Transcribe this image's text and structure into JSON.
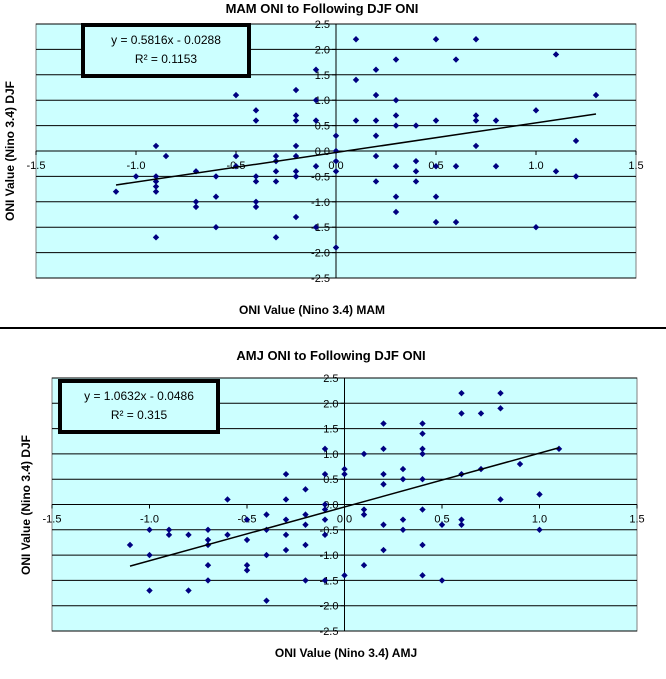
{
  "colors": {
    "plot_bg": "#CCFFFF",
    "gridline": "#000000",
    "marker": "#000080",
    "trendline": "#000000"
  },
  "chart_data": [
    {
      "type": "scatter",
      "title": "MAM ONI to Following DJF ONI",
      "xlabel": "ONI Value (Nino 3.4) MAM",
      "ylabel": "ONI Value (Nino 3.4) DJF",
      "xlim": [
        -1.5,
        1.5
      ],
      "ylim": [
        -2.5,
        2.5
      ],
      "xticks": [
        "-1.5",
        "-1.0",
        "-0.5",
        "0.0",
        "0.5",
        "1.0",
        "1.5"
      ],
      "yticks": [
        "-2.5",
        "-2.0",
        "-1.5",
        "-1.0",
        "-0.5",
        "0.0",
        "0.5",
        "1.0",
        "1.5",
        "2.0",
        "2.5"
      ],
      "grid": "horizontal",
      "equation": "y = 0.5816x - 0.0288",
      "r2": "R² = 0.1153",
      "trendline": {
        "slope": 0.5816,
        "intercept": -0.0288,
        "x_range": [
          -1.1,
          1.3
        ]
      },
      "points": [
        [
          -1.1,
          -0.8
        ],
        [
          -1.0,
          -0.5
        ],
        [
          -0.9,
          0.1
        ],
        [
          -0.9,
          -0.5
        ],
        [
          -0.9,
          -0.6
        ],
        [
          -0.9,
          -0.7
        ],
        [
          -0.9,
          -0.8
        ],
        [
          -0.9,
          -1.7
        ],
        [
          -0.85,
          -0.1
        ],
        [
          -0.7,
          -0.4
        ],
        [
          -0.7,
          -1.0
        ],
        [
          -0.7,
          -1.1
        ],
        [
          -0.6,
          -0.5
        ],
        [
          -0.6,
          -0.9
        ],
        [
          -0.6,
          -1.5
        ],
        [
          -0.5,
          1.1
        ],
        [
          -0.5,
          -0.1
        ],
        [
          -0.5,
          -0.3
        ],
        [
          -0.4,
          0.8
        ],
        [
          -0.4,
          0.6
        ],
        [
          -0.4,
          -0.5
        ],
        [
          -0.4,
          -0.6
        ],
        [
          -0.4,
          -1.0
        ],
        [
          -0.4,
          -1.1
        ],
        [
          -0.3,
          -0.1
        ],
        [
          -0.3,
          -0.2
        ],
        [
          -0.3,
          -0.4
        ],
        [
          -0.3,
          -0.6
        ],
        [
          -0.3,
          -1.7
        ],
        [
          -0.2,
          1.2
        ],
        [
          -0.2,
          0.7
        ],
        [
          -0.2,
          0.6
        ],
        [
          -0.2,
          0.1
        ],
        [
          -0.2,
          -0.1
        ],
        [
          -0.2,
          -0.4
        ],
        [
          -0.2,
          -0.5
        ],
        [
          -0.2,
          -1.3
        ],
        [
          -0.1,
          1.6
        ],
        [
          -0.1,
          1.0
        ],
        [
          -0.1,
          0.6
        ],
        [
          -0.1,
          -0.3
        ],
        [
          -0.1,
          -1.5
        ],
        [
          0.0,
          0.3
        ],
        [
          0.0,
          0.0
        ],
        [
          0.0,
          -0.2
        ],
        [
          0.0,
          -0.4
        ],
        [
          0.0,
          -1.9
        ],
        [
          0.1,
          2.2
        ],
        [
          0.1,
          1.4
        ],
        [
          0.1,
          0.6
        ],
        [
          0.2,
          1.6
        ],
        [
          0.2,
          1.1
        ],
        [
          0.2,
          0.6
        ],
        [
          0.2,
          0.3
        ],
        [
          0.2,
          -0.1
        ],
        [
          0.2,
          -0.6
        ],
        [
          0.3,
          1.8
        ],
        [
          0.3,
          1.0
        ],
        [
          0.3,
          0.7
        ],
        [
          0.3,
          0.5
        ],
        [
          0.3,
          -0.3
        ],
        [
          0.3,
          -0.9
        ],
        [
          0.3,
          -1.2
        ],
        [
          0.4,
          0.5
        ],
        [
          0.4,
          -0.2
        ],
        [
          0.4,
          -0.4
        ],
        [
          0.4,
          -0.6
        ],
        [
          0.5,
          2.2
        ],
        [
          0.5,
          0.6
        ],
        [
          0.5,
          -0.3
        ],
        [
          0.5,
          -0.9
        ],
        [
          0.5,
          -1.4
        ],
        [
          0.6,
          1.8
        ],
        [
          0.6,
          -0.3
        ],
        [
          0.6,
          -1.4
        ],
        [
          0.7,
          2.2
        ],
        [
          0.7,
          0.7
        ],
        [
          0.7,
          0.6
        ],
        [
          0.7,
          0.1
        ],
        [
          0.8,
          0.6
        ],
        [
          0.8,
          -0.3
        ],
        [
          1.0,
          0.8
        ],
        [
          1.0,
          -1.5
        ],
        [
          1.1,
          1.9
        ],
        [
          1.1,
          -0.4
        ],
        [
          1.2,
          0.2
        ],
        [
          1.2,
          -0.5
        ],
        [
          1.3,
          1.1
        ]
      ]
    },
    {
      "type": "scatter",
      "title": "AMJ ONI to Following DJF ONI",
      "xlabel": "ONI Value (Nino 3.4) AMJ",
      "ylabel": "ONI Value (Nino 3.4) DJF",
      "xlim": [
        -1.5,
        1.5
      ],
      "ylim": [
        -2.5,
        2.5
      ],
      "xticks": [
        "-1.5",
        "-1.0",
        "-0.5",
        "0.0",
        "0.5",
        "1.0",
        "1.5"
      ],
      "yticks": [
        "-2.5",
        "-2.0",
        "-1.5",
        "-1.0",
        "-0.5",
        "0.0",
        "0.5",
        "1.0",
        "1.5",
        "2.0",
        "2.5"
      ],
      "grid": "horizontal",
      "equation": "y = 1.0632x - 0.0486",
      "r2": "R² = 0.315",
      "trendline": {
        "slope": 1.0632,
        "intercept": -0.0486,
        "x_range": [
          -1.1,
          1.1
        ]
      },
      "points": [
        [
          -1.1,
          -0.8
        ],
        [
          -1.0,
          -0.5
        ],
        [
          -1.0,
          -1.0
        ],
        [
          -1.0,
          -1.7
        ],
        [
          -0.9,
          -0.5
        ],
        [
          -0.9,
          -0.6
        ],
        [
          -0.8,
          -0.6
        ],
        [
          -0.8,
          -1.7
        ],
        [
          -0.7,
          -0.5
        ],
        [
          -0.7,
          -0.7
        ],
        [
          -0.7,
          -0.8
        ],
        [
          -0.7,
          -1.2
        ],
        [
          -0.7,
          -1.5
        ],
        [
          -0.6,
          0.1
        ],
        [
          -0.6,
          -0.6
        ],
        [
          -0.5,
          -0.3
        ],
        [
          -0.5,
          -0.7
        ],
        [
          -0.5,
          -1.2
        ],
        [
          -0.5,
          -1.3
        ],
        [
          -0.4,
          -0.2
        ],
        [
          -0.4,
          -0.5
        ],
        [
          -0.4,
          -1.0
        ],
        [
          -0.4,
          -1.9
        ],
        [
          -0.3,
          0.6
        ],
        [
          -0.3,
          0.1
        ],
        [
          -0.3,
          -0.3
        ],
        [
          -0.3,
          -0.6
        ],
        [
          -0.3,
          -0.9
        ],
        [
          -0.2,
          0.3
        ],
        [
          -0.2,
          -0.2
        ],
        [
          -0.2,
          -0.4
        ],
        [
          -0.2,
          -0.8
        ],
        [
          -0.2,
          -1.5
        ],
        [
          -0.1,
          1.1
        ],
        [
          -0.1,
          0.6
        ],
        [
          -0.1,
          0.0
        ],
        [
          -0.1,
          -0.1
        ],
        [
          -0.1,
          -0.3
        ],
        [
          -0.1,
          -0.6
        ],
        [
          -0.1,
          -1.5
        ],
        [
          0.0,
          0.7
        ],
        [
          0.0,
          0.6
        ],
        [
          0.0,
          -1.4
        ],
        [
          0.1,
          1.0
        ],
        [
          0.1,
          -0.1
        ],
        [
          0.1,
          -0.2
        ],
        [
          0.1,
          -1.2
        ],
        [
          0.2,
          1.6
        ],
        [
          0.2,
          1.1
        ],
        [
          0.2,
          0.6
        ],
        [
          0.2,
          0.4
        ],
        [
          0.2,
          -0.4
        ],
        [
          0.2,
          -0.9
        ],
        [
          0.3,
          0.7
        ],
        [
          0.3,
          0.5
        ],
        [
          0.3,
          -0.3
        ],
        [
          0.3,
          -0.5
        ],
        [
          0.4,
          1.6
        ],
        [
          0.4,
          1.4
        ],
        [
          0.4,
          1.1
        ],
        [
          0.4,
          1.0
        ],
        [
          0.4,
          0.5
        ],
        [
          0.4,
          -0.1
        ],
        [
          0.4,
          -0.8
        ],
        [
          0.4,
          -1.4
        ],
        [
          0.5,
          -0.4
        ],
        [
          0.5,
          -1.5
        ],
        [
          0.6,
          2.2
        ],
        [
          0.6,
          1.8
        ],
        [
          0.6,
          0.6
        ],
        [
          0.6,
          -0.3
        ],
        [
          0.6,
          -0.4
        ],
        [
          0.7,
          1.8
        ],
        [
          0.7,
          0.7
        ],
        [
          0.8,
          2.2
        ],
        [
          0.8,
          1.9
        ],
        [
          0.8,
          0.1
        ],
        [
          0.9,
          0.8
        ],
        [
          1.0,
          0.2
        ],
        [
          1.0,
          -0.5
        ],
        [
          1.1,
          1.1
        ]
      ]
    }
  ]
}
